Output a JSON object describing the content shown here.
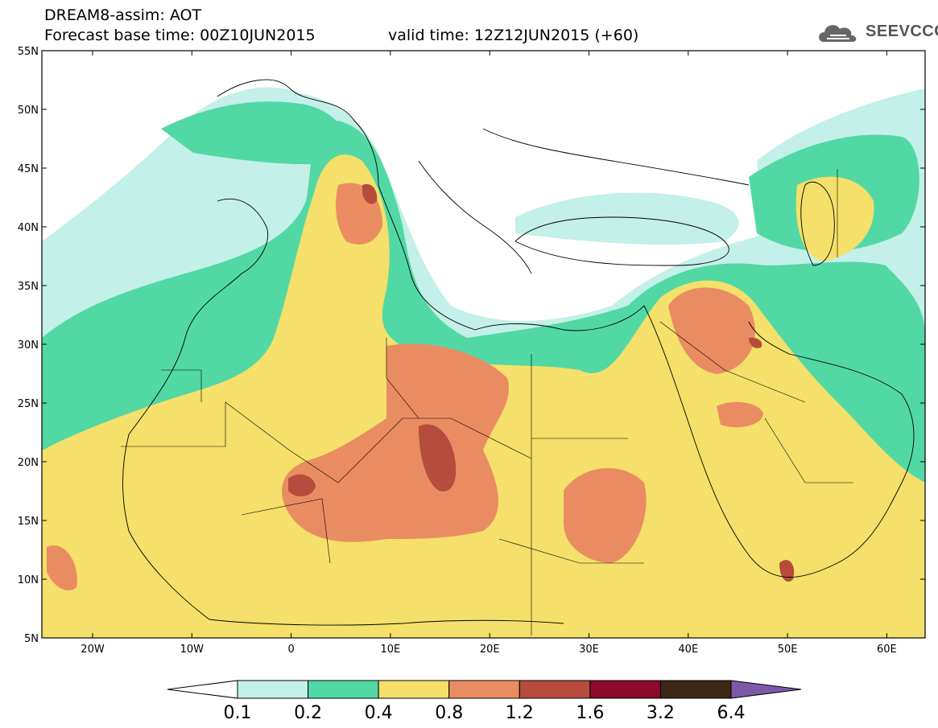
{
  "header": {
    "line1": "DREAM8-assim: AOT",
    "line2": "Forecast base time: 00Z10JUN2015",
    "valid": "valid time: 12Z12JUN2015 (+60)",
    "logo_text": "SEEVCCC"
  },
  "axes": {
    "lat_labels": [
      "55N",
      "50N",
      "45N",
      "40N",
      "35N",
      "30N",
      "25N",
      "20N",
      "15N",
      "10N",
      "5N"
    ],
    "lon_labels": [
      "20W",
      "10W",
      "0",
      "10E",
      "20E",
      "30E",
      "40E",
      "50E",
      "60E"
    ]
  },
  "legend": {
    "levels": [
      "0.1",
      "0.2",
      "0.4",
      "0.8",
      "1.2",
      "1.6",
      "3.2",
      "6.4"
    ],
    "colors": [
      "#ffffff",
      "#c3f0e8",
      "#52d8a4",
      "#f4e06a",
      "#ea8c62",
      "#b54c3c",
      "#8c0a2a",
      "#3c2814",
      "#7c5aa8"
    ]
  },
  "map_colors": {
    "v01": "#c3f0e8",
    "v02": "#52d8a4",
    "v04": "#f4e06a",
    "v08": "#ea8c62",
    "v12": "#b54c3c"
  }
}
